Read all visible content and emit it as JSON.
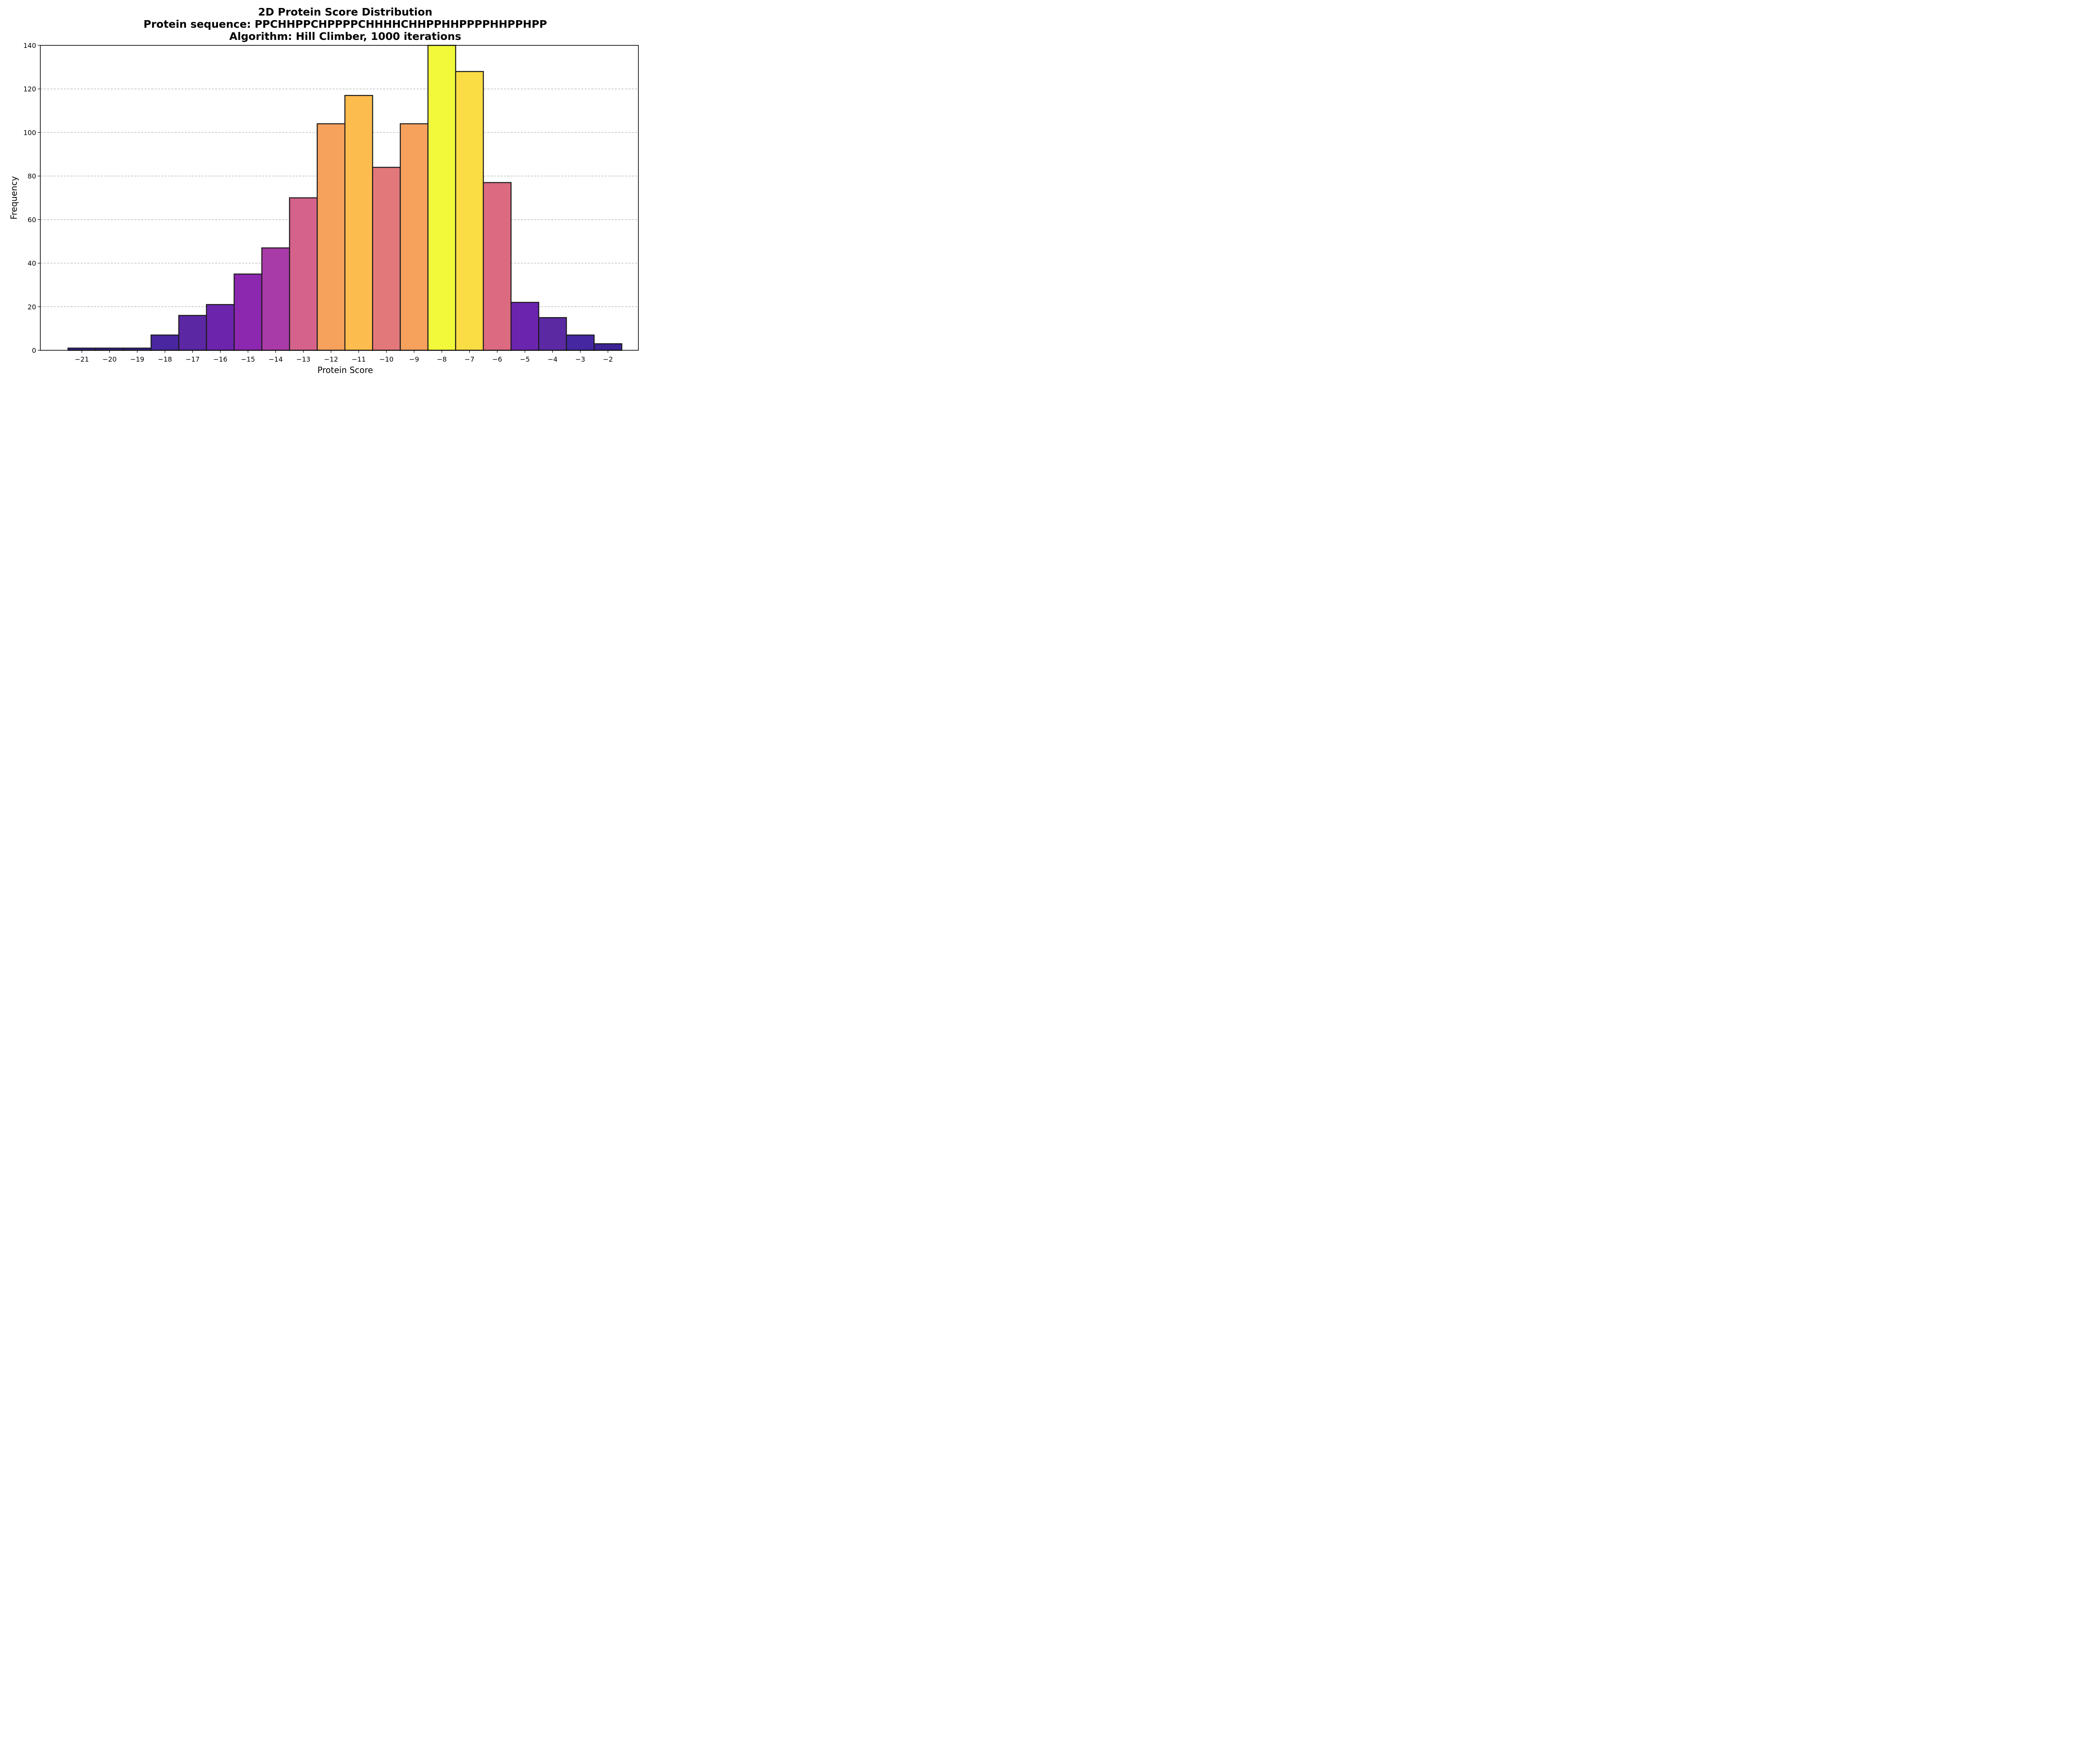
{
  "chart_data": {
    "type": "bar",
    "title_lines": [
      "2D Protein Score Distribution",
      "Protein sequence: PPCHHPPCHPPPPCHHHHCHHPPHHPPPPHHPPHPP",
      "Algorithm: Hill Climber, 1000 iterations"
    ],
    "xlabel": "Protein Score",
    "ylabel": "Frequency",
    "categories": [
      "−21",
      "−20",
      "−19",
      "−18",
      "−17",
      "−16",
      "−15",
      "−14",
      "−13",
      "−12",
      "−11",
      "−10",
      "−9",
      "−8",
      "−7",
      "−6",
      "−5",
      "−4",
      "−3",
      "−2"
    ],
    "x": [
      -21,
      -20,
      -19,
      -18,
      -17,
      -16,
      -15,
      -14,
      -13,
      -12,
      -11,
      -10,
      -9,
      -8,
      -7,
      -6,
      -5,
      -4,
      -3,
      -2
    ],
    "values": [
      1,
      1,
      1,
      7,
      16,
      21,
      35,
      47,
      70,
      104,
      117,
      84,
      104,
      140,
      128,
      77,
      22,
      15,
      7,
      3
    ],
    "colormap": "plasma",
    "bar_colors": [
      "#3b2198",
      "#3b2198",
      "#3b2198",
      "#4a26a0",
      "#5b27a3",
      "#6c24ad",
      "#8c27b0",
      "#a93ba8",
      "#d4628a",
      "#f6a15c",
      "#fdbd4e",
      "#e2787a",
      "#f6a15c",
      "#f1f93a",
      "#fadc44",
      "#dc6a80",
      "#6b24ae",
      "#5b2aa3",
      "#4527a1",
      "#3c2396"
    ],
    "edge_color": "#1a1a1a",
    "xlim": [
      -22.5,
      -0.9
    ],
    "ylim": [
      0,
      140
    ],
    "yticks": [
      0,
      20,
      40,
      60,
      80,
      100,
      120,
      140
    ],
    "grid": "y-dashed"
  }
}
